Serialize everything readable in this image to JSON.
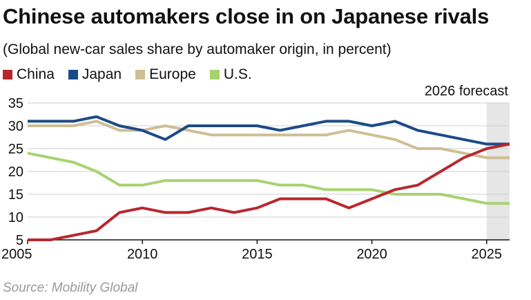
{
  "chart_data": {
    "type": "line",
    "title": "Chinese automakers close in on Japanese rivals",
    "subtitle": "(Global new-car sales share by automaker origin, in percent)",
    "source": "Source: Mobility Global",
    "xlabel": "",
    "ylabel": "",
    "x": [
      2005,
      2006,
      2007,
      2008,
      2009,
      2010,
      2011,
      2012,
      2013,
      2014,
      2015,
      2016,
      2017,
      2018,
      2019,
      2020,
      2021,
      2022,
      2023,
      2024,
      2025,
      2026
    ],
    "xlim": [
      2005,
      2026
    ],
    "ylim": [
      5,
      35
    ],
    "x_ticks": [
      "2005",
      "2010",
      "2015",
      "2020",
      "2025"
    ],
    "y_ticks": [
      "35",
      "30",
      "25",
      "20",
      "15",
      "10",
      "5"
    ],
    "grid": "horizontal",
    "legend_position": "top-left",
    "forecast": {
      "label": "2026 forecast",
      "from": 2025,
      "to": 2026,
      "shade_color": "#e6e6e6"
    },
    "series": [
      {
        "name": "China",
        "color": "#b8272e",
        "values": [
          5,
          5,
          6,
          7,
          11,
          12,
          11,
          11,
          12,
          11,
          12,
          14,
          14,
          14,
          12,
          14,
          16,
          17,
          20,
          23,
          25,
          26
        ]
      },
      {
        "name": "Japan",
        "color": "#1c4a86",
        "values": [
          31,
          31,
          31,
          32,
          30,
          29,
          27,
          30,
          30,
          30,
          30,
          29,
          30,
          31,
          31,
          30,
          31,
          29,
          28,
          27,
          26,
          26
        ]
      },
      {
        "name": "Europe",
        "color": "#cdbf94",
        "values": [
          30,
          30,
          30,
          31,
          29,
          29,
          30,
          29,
          28,
          28,
          28,
          28,
          28,
          28,
          29,
          28,
          27,
          25,
          25,
          24,
          23,
          23
        ]
      },
      {
        "name": "U.S.",
        "color": "#a7d36e",
        "values": [
          24,
          23,
          22,
          20,
          17,
          17,
          18,
          18,
          18,
          18,
          18,
          17,
          17,
          16,
          16,
          16,
          15,
          15,
          15,
          14,
          13,
          13
        ]
      }
    ]
  }
}
